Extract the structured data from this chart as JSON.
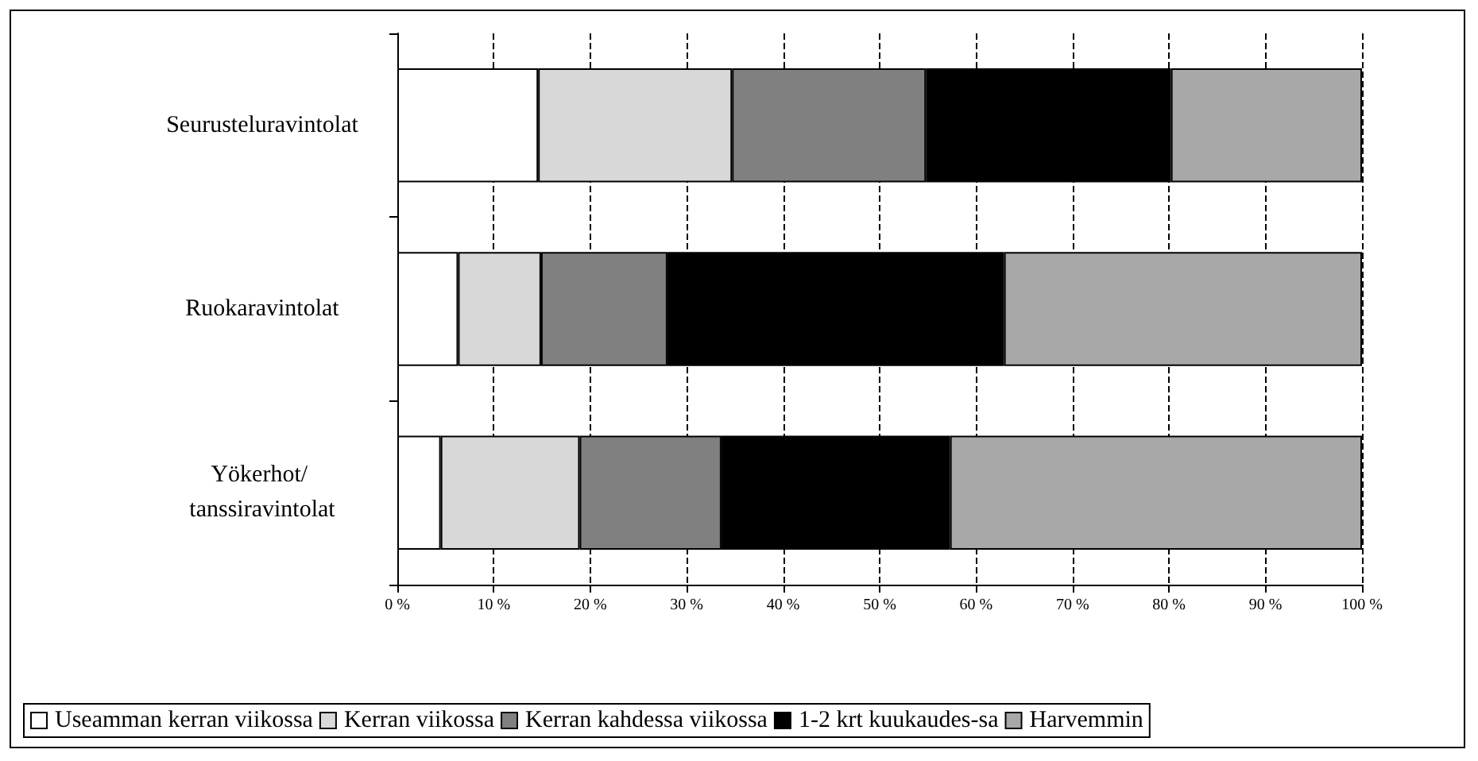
{
  "chart_data": {
    "type": "bar",
    "orientation": "horizontal",
    "stacked": true,
    "categories": [
      "Seurusteluravintolat",
      "Ruokaravintolat",
      "Yökerhot/ tanssiravintolat"
    ],
    "series": [
      {
        "name": "Useamman kerran viikossa",
        "color": "#ffffff",
        "values": [
          14.6,
          6.3,
          4.5
        ]
      },
      {
        "name": "Kerran viikossa",
        "color": "#d8d8d8",
        "values": [
          20.1,
          8.6,
          14.4
        ]
      },
      {
        "name": "Kerran kahdessa viikossa",
        "color": "#808080",
        "values": [
          20.1,
          13.1,
          14.7
        ]
      },
      {
        "name": "1-2 krt kuukaudes-sa",
        "color": "#000000",
        "values": [
          25.4,
          34.9,
          23.7
        ]
      },
      {
        "name": "Harvemmin",
        "color": "#a8a8a8",
        "values": [
          19.8,
          37.1,
          42.7
        ]
      }
    ],
    "xlim": [
      0,
      100
    ],
    "xticks": [
      {
        "value": 0,
        "label": "0 %"
      },
      {
        "value": 10,
        "label": "10 %"
      },
      {
        "value": 20,
        "label": "20 %"
      },
      {
        "value": 30,
        "label": "30 %"
      },
      {
        "value": 40,
        "label": "40 %"
      },
      {
        "value": 50,
        "label": "50 %"
      },
      {
        "value": 60,
        "label": "60 %"
      },
      {
        "value": 70,
        "label": "70 %"
      },
      {
        "value": 80,
        "label": "80 %"
      },
      {
        "value": 90,
        "label": "90 %"
      },
      {
        "value": 100,
        "label": "100 %"
      }
    ],
    "grid": "x",
    "legend": "bottom"
  }
}
